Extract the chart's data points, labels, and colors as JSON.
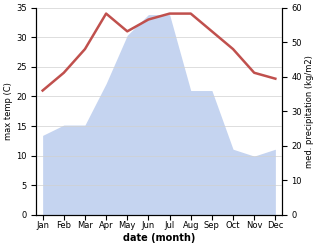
{
  "months": [
    "Jan",
    "Feb",
    "Mar",
    "Apr",
    "May",
    "Jun",
    "Jul",
    "Aug",
    "Sep",
    "Oct",
    "Nov",
    "Dec"
  ],
  "month_positions": [
    0,
    1,
    2,
    3,
    4,
    5,
    6,
    7,
    8,
    9,
    10,
    11
  ],
  "temperature": [
    21,
    24,
    28,
    34,
    31,
    33,
    34,
    34,
    31,
    28,
    24,
    23
  ],
  "precipitation": [
    23,
    26,
    26,
    38,
    52,
    58,
    58,
    36,
    36,
    19,
    17,
    19
  ],
  "temp_color": "#c0504d",
  "precip_fill_color": "#c5d4f0",
  "background_color": "#ffffff",
  "xlabel": "date (month)",
  "ylabel_left": "max temp (C)",
  "ylabel_right": "med. precipitation (kg/m2)",
  "ylim_left": [
    0,
    35
  ],
  "ylim_right": [
    0,
    60
  ],
  "yticks_left": [
    0,
    5,
    10,
    15,
    20,
    25,
    30,
    35
  ],
  "yticks_right": [
    0,
    10,
    20,
    30,
    40,
    50,
    60
  ],
  "grid_color": "#d0d0d0",
  "temp_linewidth": 1.8
}
